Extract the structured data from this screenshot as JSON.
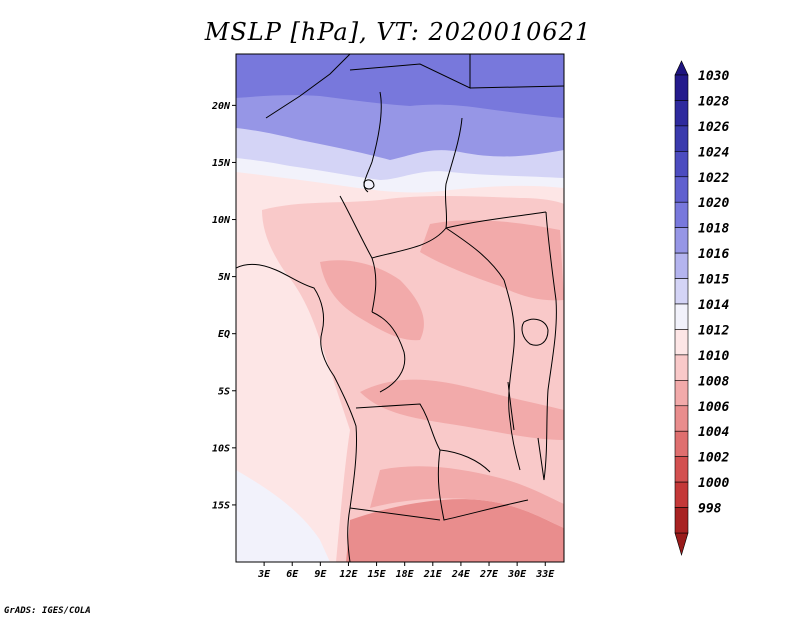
{
  "chart_data": {
    "type": "heatmap",
    "title": "MSLP [hPa], VT: 2020010621",
    "variable": "MSLP",
    "units": "hPa",
    "valid_time": "2020010621",
    "lon_range": [
      0,
      35
    ],
    "lat_range": [
      -20,
      24.5
    ],
    "x_ticks": [
      {
        "value": 3,
        "label": "3E"
      },
      {
        "value": 6,
        "label": "6E"
      },
      {
        "value": 9,
        "label": "9E"
      },
      {
        "value": 12,
        "label": "12E"
      },
      {
        "value": 15,
        "label": "15E"
      },
      {
        "value": 18,
        "label": "18E"
      },
      {
        "value": 21,
        "label": "21E"
      },
      {
        "value": 24,
        "label": "24E"
      },
      {
        "value": 27,
        "label": "27E"
      },
      {
        "value": 30,
        "label": "30E"
      },
      {
        "value": 33,
        "label": "33E"
      }
    ],
    "y_ticks": [
      {
        "value": 20,
        "label": "20N"
      },
      {
        "value": 15,
        "label": "15N"
      },
      {
        "value": 10,
        "label": "10N"
      },
      {
        "value": 5,
        "label": "5N"
      },
      {
        "value": 0,
        "label": "EQ"
      },
      {
        "value": -5,
        "label": "5S"
      },
      {
        "value": -10,
        "label": "10S"
      },
      {
        "value": -15,
        "label": "15S"
      }
    ],
    "colorbar": {
      "levels": [
        {
          "label": "1030",
          "color": "#241a8c"
        },
        {
          "label": "1028",
          "color": "#2e2a9e"
        },
        {
          "label": "1026",
          "color": "#3a3aad"
        },
        {
          "label": "1024",
          "color": "#4c4cc0"
        },
        {
          "label": "1022",
          "color": "#6060cf"
        },
        {
          "label": "1020",
          "color": "#7878dc"
        },
        {
          "label": "1018",
          "color": "#9696e6"
        },
        {
          "label": "1016",
          "color": "#b4b4ef"
        },
        {
          "label": "1015",
          "color": "#d4d4f6"
        },
        {
          "label": "1014",
          "color": "#f2f2fb"
        },
        {
          "label": "1012",
          "color": "#fde6e6"
        },
        {
          "label": "1010",
          "color": "#f9c9c9"
        },
        {
          "label": "1008",
          "color": "#f2aaaa"
        },
        {
          "label": "1006",
          "color": "#e98d8d"
        },
        {
          "label": "1004",
          "color": "#df6f6f"
        },
        {
          "label": "1002",
          "color": "#d35050"
        },
        {
          "label": "1000",
          "color": "#c43838"
        },
        {
          "label": "998",
          "color": "#a82222"
        }
      ],
      "top_arrow_color": "#1e1480",
      "bottom_arrow_color": "#991b1b"
    },
    "field_regions": [
      {
        "name": "north-high",
        "value": 1020
      },
      {
        "name": "northern-band",
        "value": 1018
      },
      {
        "name": "sahel-band",
        "value": 1015
      },
      {
        "name": "white-band",
        "value": 1014
      },
      {
        "name": "ocean",
        "value": 1012
      },
      {
        "name": "central",
        "value": 1010
      },
      {
        "name": "congo-low",
        "value": 1008
      },
      {
        "name": "south-low",
        "value": 1006
      }
    ]
  },
  "footer": "GrADS: IGES/COLA"
}
